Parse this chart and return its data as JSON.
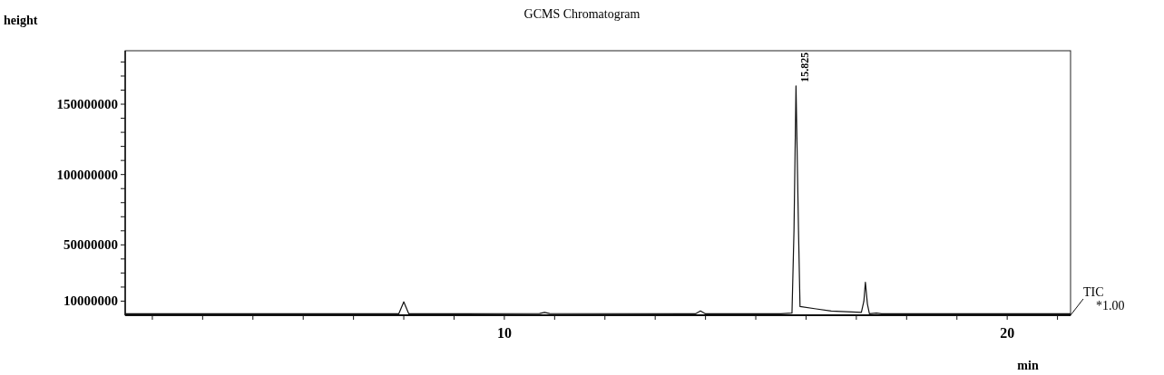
{
  "chart_data": {
    "type": "line",
    "title": "GCMS Chromatogram",
    "xlabel": "min",
    "ylabel": "height",
    "x": [
      2.46,
      5,
      7.9,
      8.0,
      8.1,
      10.7,
      10.8,
      10.9,
      13.8,
      13.9,
      14.0,
      15.5,
      15.72,
      15.76,
      15.8,
      15.85,
      15.88,
      16.2,
      16.5,
      16.8,
      17.1,
      17.15,
      17.18,
      17.22,
      17.26,
      17.4,
      17.5,
      21.26
    ],
    "series": [
      {
        "color": "#111111",
        "values": [
          1000000,
          1000000,
          1000000,
          9500000,
          1000000,
          1200000,
          2000000,
          1200000,
          1000000,
          3000000,
          1000000,
          1000000,
          1500000,
          60000000,
          163000000,
          60000000,
          6200000,
          4500000,
          3000000,
          2500000,
          2000000,
          10000000,
          23500000,
          8000000,
          1000000,
          1500000,
          1000000,
          1000000
        ]
      }
    ],
    "xlim": [
      2.46,
      21.26
    ],
    "ylim": [
      0,
      188000000
    ],
    "xticks": [
      {
        "value": 3,
        "label": null
      },
      {
        "value": 4,
        "label": null
      },
      {
        "value": 5,
        "label": null
      },
      {
        "value": 6,
        "label": null
      },
      {
        "value": 7,
        "label": null
      },
      {
        "value": 8,
        "label": null
      },
      {
        "value": 9,
        "label": null
      },
      10,
      {
        "value": 11,
        "label": null
      },
      {
        "value": 12,
        "label": null
      },
      {
        "value": 13,
        "label": null
      },
      {
        "value": 14,
        "label": null
      },
      {
        "value": 15,
        "label": null
      },
      {
        "value": 16,
        "label": null
      },
      {
        "value": 17,
        "label": null
      },
      {
        "value": 18,
        "label": null
      },
      {
        "value": 19,
        "label": null
      },
      20,
      {
        "value": 21,
        "label": null
      }
    ],
    "yticks": [
      10000000,
      {
        "value": 20000000,
        "label": null
      },
      {
        "value": 30000000,
        "label": null
      },
      {
        "value": 40000000,
        "label": null
      },
      50000000,
      {
        "value": 60000000,
        "label": null
      },
      {
        "value": 70000000,
        "label": null
      },
      {
        "value": 80000000,
        "label": null
      },
      {
        "value": 90000000,
        "label": null
      },
      100000000,
      {
        "value": 110000000,
        "label": null
      },
      {
        "value": 120000000,
        "label": null
      },
      {
        "value": 130000000,
        "label": null
      },
      {
        "value": 140000000,
        "label": null
      },
      150000000,
      {
        "value": 160000000,
        "label": null
      },
      {
        "value": 170000000,
        "label": null
      },
      {
        "value": 180000000,
        "label": null
      }
    ],
    "annotations": [
      {
        "text": "15.825",
        "x": 15.825,
        "y": 163000000
      },
      "TIC",
      "*1.00"
    ],
    "grid": false,
    "marker": "none",
    "line_style": "solid"
  }
}
